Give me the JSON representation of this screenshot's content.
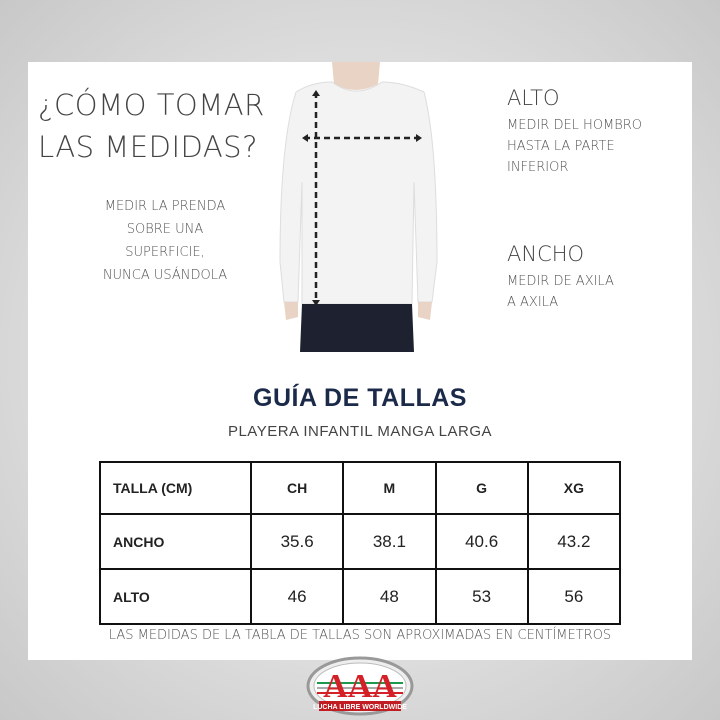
{
  "how": {
    "title_line1": "¿CÓMO TOMAR",
    "title_line2": "LAS MEDIDAS?",
    "instruction_lines": [
      "MEDIR LA PRENDA",
      "SOBRE UNA",
      "SUPERFICIE,",
      "NUNCA USÁNDOLA"
    ]
  },
  "alto": {
    "heading": "ALTO",
    "lines": [
      "MEDIR DEL HOMBRO",
      "HASTA LA PARTE",
      "INFERIOR"
    ]
  },
  "ancho": {
    "heading": "ANCHO",
    "lines": [
      "MEDIR DE AXILA",
      "A AXILA"
    ]
  },
  "guide": {
    "title": "GUÍA DE TALLAS",
    "subtitle": "PLAYERA INFANTIL MANGA LARGA"
  },
  "table": {
    "headers": [
      "TALLA (CM)",
      "CH",
      "M",
      "G",
      "XG"
    ],
    "rows": [
      [
        "ANCHO",
        "35.6",
        "38.1",
        "40.6",
        "43.2"
      ],
      [
        "ALTO",
        "46",
        "48",
        "53",
        "56"
      ]
    ]
  },
  "note": "LAS MEDIDAS DE LA TABLA DE TALLAS SON APROXIMADAS EN CENTÍMETROS",
  "logo": {
    "text": "AAA",
    "tagline": "LUCHA LIBRE WORLDWIDE",
    "colors": {
      "red": "#d42027",
      "green": "#1a9a4a"
    }
  }
}
